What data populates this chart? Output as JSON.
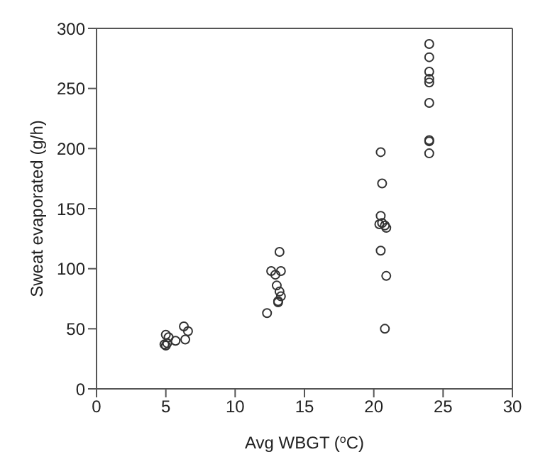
{
  "chart_data": {
    "type": "scatter",
    "xlabel": "Avg WBGT ($^{o}$C)",
    "ylabel": "Sweat evaporated (g/h)",
    "x": [
      4.9,
      5.0,
      5.0,
      5.1,
      5.2,
      5.7,
      6.3,
      6.4,
      6.6,
      12.3,
      12.6,
      12.9,
      13.0,
      13.1,
      13.1,
      13.2,
      13.2,
      13.3,
      13.3,
      20.4,
      20.5,
      20.5,
      20.5,
      20.6,
      20.6,
      20.8,
      20.8,
      20.9,
      20.9,
      24,
      24,
      24,
      24,
      24,
      24,
      24,
      24,
      24
    ],
    "series": [
      {
        "color": "#333333",
        "values": [
          37,
          36,
          45,
          38,
          43,
          40,
          52,
          41,
          48,
          63,
          98,
          95,
          86,
          73,
          72,
          114,
          81,
          98,
          77,
          137,
          197,
          144,
          115,
          171,
          138,
          136,
          50,
          134,
          94,
          287,
          276,
          264,
          258,
          255,
          238,
          207,
          206,
          196
        ]
      }
    ],
    "marker": "circle",
    "xlim": [
      0,
      30
    ],
    "xticks": [
      0,
      5,
      10,
      15,
      20,
      25,
      30
    ],
    "ylim": [
      0,
      300
    ],
    "yticks": [
      0,
      50,
      100,
      150,
      200,
      250,
      300
    ]
  }
}
